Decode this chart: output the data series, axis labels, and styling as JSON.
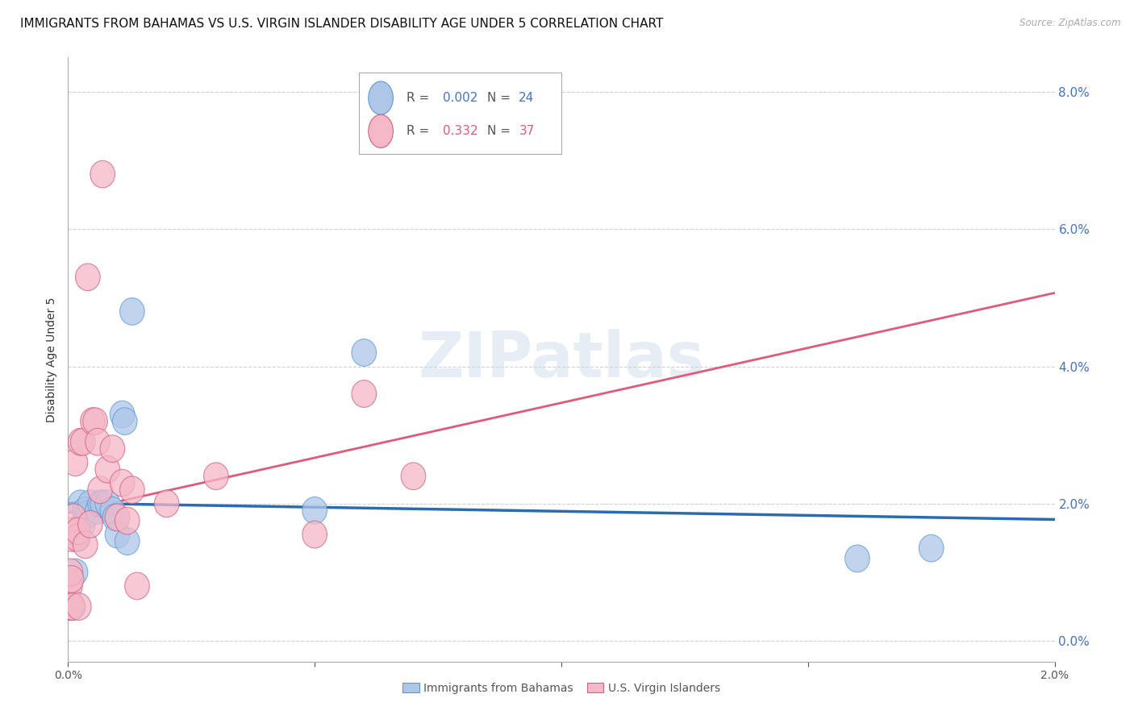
{
  "title": "IMMIGRANTS FROM BAHAMAS VS U.S. VIRGIN ISLANDER DISABILITY AGE UNDER 5 CORRELATION CHART",
  "source": "Source: ZipAtlas.com",
  "ylabel": "Disability Age Under 5",
  "legend_label1": "Immigrants from Bahamas",
  "legend_label2": "U.S. Virgin Islanders",
  "R1": "0.002",
  "N1": "24",
  "R2": "0.332",
  "N2": "37",
  "color_blue": "#aec6e8",
  "color_pink": "#f4b8c8",
  "line_color_blue": "#2b6cb0",
  "line_color_pink": "#e05a7a",
  "edge_blue": "#5b9bd5",
  "edge_pink": "#d46080",
  "grid_color": "#cccccc",
  "right_axis_color": "#4472c4",
  "xlim": [
    0.0,
    0.02
  ],
  "ylim": [
    -0.003,
    0.085
  ],
  "yticks": [
    0.0,
    0.02,
    0.04,
    0.06,
    0.08
  ],
  "ytick_labels": [
    "0.0%",
    "2.0%",
    "4.0%",
    "6.0%",
    "8.0%"
  ],
  "blue_x": [
    5e-05,
    0.0001,
    0.00015,
    0.0002,
    0.00025,
    0.0003,
    0.00035,
    0.0004,
    0.00045,
    0.0006,
    0.00065,
    0.0007,
    0.0008,
    0.0009,
    0.00095,
    0.001,
    0.0011,
    0.00115,
    0.0012,
    0.0013,
    0.005,
    0.006,
    0.016,
    0.0175
  ],
  "blue_y": [
    0.005,
    0.005,
    0.01,
    0.015,
    0.02,
    0.017,
    0.019,
    0.0185,
    0.02,
    0.019,
    0.02,
    0.02,
    0.02,
    0.019,
    0.018,
    0.0155,
    0.033,
    0.032,
    0.0145,
    0.048,
    0.019,
    0.042,
    0.012,
    0.0135
  ],
  "pink_x": [
    1e-05,
    2e-05,
    3e-05,
    4e-05,
    5e-05,
    6e-05,
    7e-05,
    8e-05,
    9e-05,
    0.0001,
    0.00012,
    0.00015,
    0.00018,
    0.0002,
    0.00022,
    0.00025,
    0.0003,
    0.00035,
    0.0004,
    0.00045,
    0.0005,
    0.00055,
    0.0006,
    0.00065,
    0.0007,
    0.0008,
    0.0009,
    0.001,
    0.0011,
    0.0012,
    0.0013,
    0.0014,
    0.002,
    0.003,
    0.005,
    0.006,
    0.007
  ],
  "pink_y": [
    0.005,
    0.006,
    0.005,
    0.008,
    0.01,
    0.005,
    0.009,
    0.015,
    0.005,
    0.016,
    0.018,
    0.026,
    0.015,
    0.016,
    0.005,
    0.029,
    0.029,
    0.014,
    0.053,
    0.017,
    0.032,
    0.032,
    0.029,
    0.022,
    0.068,
    0.025,
    0.028,
    0.018,
    0.023,
    0.0175,
    0.022,
    0.008,
    0.02,
    0.024,
    0.0155,
    0.036,
    0.024
  ],
  "watermark": "ZIPatlas",
  "background_color": "#ffffff",
  "title_fontsize": 11,
  "axis_label_fontsize": 10,
  "tick_fontsize": 10
}
